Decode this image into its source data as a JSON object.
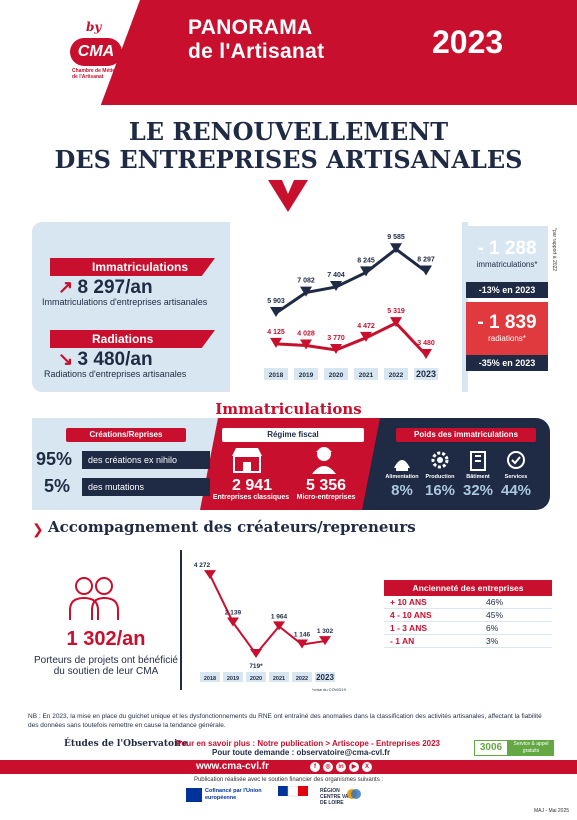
{
  "header": {
    "by": "by",
    "logo": "CMA",
    "logo_sub": "Chambre de Métiers et de l'Artisanat",
    "title_line1": "PANORAMA",
    "title_line2": "de l'Artisanat",
    "year": "2023"
  },
  "main_title_line1": "LE RENOUVELLEMENT",
  "main_title_line2": "DES ENTREPRISES ARTISANALES",
  "top": {
    "immat_label": "Immatriculations",
    "immat_value": "8 297/an",
    "immat_desc": "Immatriculations d'entreprises artisanales",
    "rad_label": "Radiations",
    "rad_value": "3 480/an",
    "rad_desc": "Radiations d'entreprises artisanales",
    "box1_value": "- 1 288",
    "box1_label": "immatriculations*",
    "box1_pct": "-13% en 2023",
    "box2_value": "- 1 839",
    "box2_label": "radiations*",
    "box2_pct": "-35% en 2023",
    "side_note": "*par rapport à 2022"
  },
  "chart_data": [
    {
      "type": "line",
      "x": [
        "2018",
        "2019",
        "2020",
        "2021",
        "2022",
        "2023"
      ],
      "series": [
        {
          "values": [
            5903,
            7082,
            7404,
            8245,
            9585,
            8297
          ],
          "labels": [
            "5 903",
            "7 082",
            "7 404",
            "8 245",
            "9 585",
            "8 297"
          ],
          "color": "#1f2a44"
        },
        {
          "values": [
            4125,
            4028,
            3770,
            4472,
            5319,
            3480
          ],
          "labels": [
            "4 125",
            "4 028",
            "3 770",
            "4 472",
            "5 319",
            "3 480"
          ],
          "color": "#c8102e"
        }
      ]
    },
    {
      "type": "line",
      "x": [
        "2018",
        "2019",
        "2020",
        "2021",
        "2022",
        "2023"
      ],
      "series": [
        {
          "values": [
            4272,
            2139,
            719,
            1964,
            1146,
            1302
          ],
          "labels": [
            "4 272",
            "2 139",
            "719*",
            "1 964",
            "1 146",
            "1 302"
          ],
          "color": "#c8102e"
        }
      ],
      "annotation": "*crise du COVID19"
    }
  ],
  "immat": {
    "title": "Immatriculations",
    "creations_tag": "Créations/Reprises",
    "pct1": "95%",
    "pct1_label": "des créations ex nihilo",
    "pct2": "5%",
    "pct2_label": "des mutations",
    "regime_tag": "Régime fiscal",
    "classic_value": "2 941",
    "classic_label": "Entreprises classiques",
    "micro_value": "5 356",
    "micro_label": "Micro-entreprises",
    "poids_tag": "Poids des immatriculations",
    "sectors": [
      {
        "name": "Alimentation",
        "pct": "8%",
        "icon": "food-icon"
      },
      {
        "name": "Production",
        "pct": "16%",
        "icon": "gears-icon"
      },
      {
        "name": "Bâtiment",
        "pct": "32%",
        "icon": "building-icon"
      },
      {
        "name": "Services",
        "pct": "44%",
        "icon": "services-icon"
      }
    ]
  },
  "acc": {
    "title": "Accompagnement des créateurs/repreneurs",
    "value": "1 302/an",
    "desc": "Porteurs de projets ont bénéficié du soutien de leur CMA"
  },
  "anciennete": {
    "title": "Ancienneté des entreprises",
    "rows": [
      {
        "k": "+ 10 ANS",
        "v": "46%"
      },
      {
        "k": "4 - 10 ANS",
        "v": "45%"
      },
      {
        "k": "1 - 3 ANS",
        "v": "6%"
      },
      {
        "k": "- 1 AN",
        "v": "3%"
      }
    ]
  },
  "footer": {
    "nb": "NB : En 2023, la mise en place du guichet unique et les dysfonctionnements du RNE ont entraîné des anomalies dans la classification des activités artisanales, affectant la fiabilité des données sans toutefois remettre en cause la tendance générale.",
    "etudes": "Études de l'Observatoire",
    "plus": "Pour en savoir plus : Notre publication > Artiscope - Entreprises 2023",
    "demande": "Pour toute demande : observatoire@cma-cvl.fr",
    "tel": "3006",
    "tel_sub": "Service & appel gratuits",
    "web": "www.cma-cvl.fr",
    "pub": "Publication réalisée avec le soutien financier des organismes suivants :",
    "eu": "Cofinancé par l'Union européenne",
    "region": "RÉGION CENTRE VAL DE LOIRE",
    "maj": "MAJ - Mai 2025"
  }
}
